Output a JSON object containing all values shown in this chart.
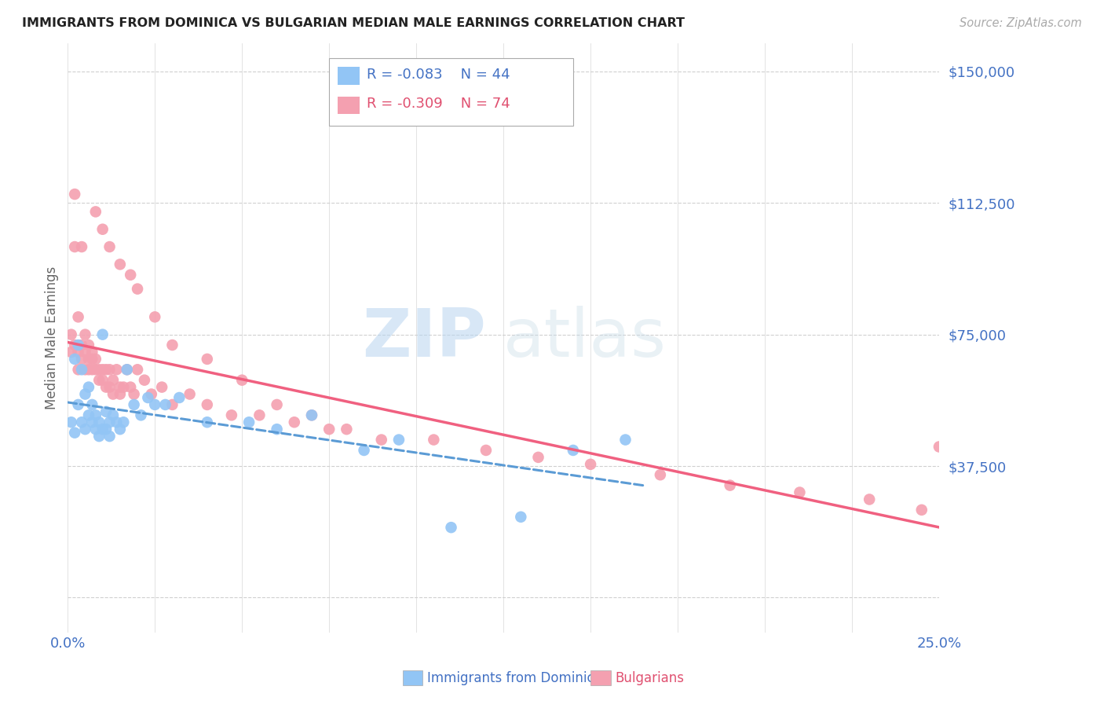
{
  "title": "IMMIGRANTS FROM DOMINICA VS BULGARIAN MEDIAN MALE EARNINGS CORRELATION CHART",
  "source": "Source: ZipAtlas.com",
  "ylabel": "Median Male Earnings",
  "xlim": [
    0.0,
    0.25
  ],
  "ylim": [
    -10000,
    158000
  ],
  "y_ticks": [
    0,
    37500,
    75000,
    112500,
    150000
  ],
  "y_tick_labels": [
    "",
    "$37,500",
    "$75,000",
    "$112,500",
    "$150,000"
  ],
  "legend1_r": "-0.083",
  "legend1_n": "44",
  "legend2_r": "-0.309",
  "legend2_n": "74",
  "color_blue": "#92c5f5",
  "color_pink": "#f4a0b0",
  "color_blue_line": "#5b9bd5",
  "color_pink_line": "#f06080",
  "color_axis": "#4472c4",
  "watermark_zip": "ZIP",
  "watermark_atlas": "atlas",
  "background_color": "#ffffff",
  "dominica_x": [
    0.001,
    0.002,
    0.002,
    0.003,
    0.003,
    0.004,
    0.004,
    0.005,
    0.005,
    0.006,
    0.006,
    0.007,
    0.007,
    0.008,
    0.008,
    0.009,
    0.009,
    0.01,
    0.01,
    0.011,
    0.011,
    0.012,
    0.012,
    0.013,
    0.014,
    0.015,
    0.016,
    0.017,
    0.019,
    0.021,
    0.023,
    0.025,
    0.028,
    0.032,
    0.04,
    0.052,
    0.06,
    0.07,
    0.085,
    0.095,
    0.11,
    0.13,
    0.145,
    0.16
  ],
  "dominica_y": [
    50000,
    47000,
    68000,
    55000,
    72000,
    50000,
    65000,
    48000,
    58000,
    52000,
    60000,
    50000,
    55000,
    48000,
    52000,
    46000,
    50000,
    48000,
    75000,
    53000,
    48000,
    50000,
    46000,
    52000,
    50000,
    48000,
    50000,
    65000,
    55000,
    52000,
    57000,
    55000,
    55000,
    57000,
    50000,
    50000,
    48000,
    52000,
    42000,
    45000,
    20000,
    23000,
    42000,
    45000
  ],
  "bulgarian_x": [
    0.001,
    0.001,
    0.002,
    0.002,
    0.002,
    0.003,
    0.003,
    0.003,
    0.004,
    0.004,
    0.004,
    0.005,
    0.005,
    0.005,
    0.006,
    0.006,
    0.006,
    0.007,
    0.007,
    0.007,
    0.008,
    0.008,
    0.009,
    0.009,
    0.01,
    0.01,
    0.011,
    0.011,
    0.012,
    0.012,
    0.013,
    0.013,
    0.014,
    0.015,
    0.015,
    0.016,
    0.017,
    0.018,
    0.019,
    0.02,
    0.022,
    0.024,
    0.027,
    0.03,
    0.035,
    0.04,
    0.047,
    0.055,
    0.065,
    0.075,
    0.09,
    0.105,
    0.12,
    0.135,
    0.15,
    0.17,
    0.19,
    0.21,
    0.23,
    0.245,
    0.008,
    0.01,
    0.012,
    0.015,
    0.018,
    0.02,
    0.025,
    0.03,
    0.04,
    0.05,
    0.06,
    0.07,
    0.08,
    0.25
  ],
  "bulgarian_y": [
    70000,
    75000,
    115000,
    100000,
    72000,
    70000,
    65000,
    80000,
    68000,
    72000,
    100000,
    65000,
    70000,
    75000,
    65000,
    68000,
    72000,
    68000,
    65000,
    70000,
    65000,
    68000,
    65000,
    62000,
    62000,
    65000,
    60000,
    65000,
    60000,
    65000,
    58000,
    62000,
    65000,
    60000,
    58000,
    60000,
    65000,
    60000,
    58000,
    65000,
    62000,
    58000,
    60000,
    55000,
    58000,
    55000,
    52000,
    52000,
    50000,
    48000,
    45000,
    45000,
    42000,
    40000,
    38000,
    35000,
    32000,
    30000,
    28000,
    25000,
    110000,
    105000,
    100000,
    95000,
    92000,
    88000,
    80000,
    72000,
    68000,
    62000,
    55000,
    52000,
    48000,
    43000
  ]
}
